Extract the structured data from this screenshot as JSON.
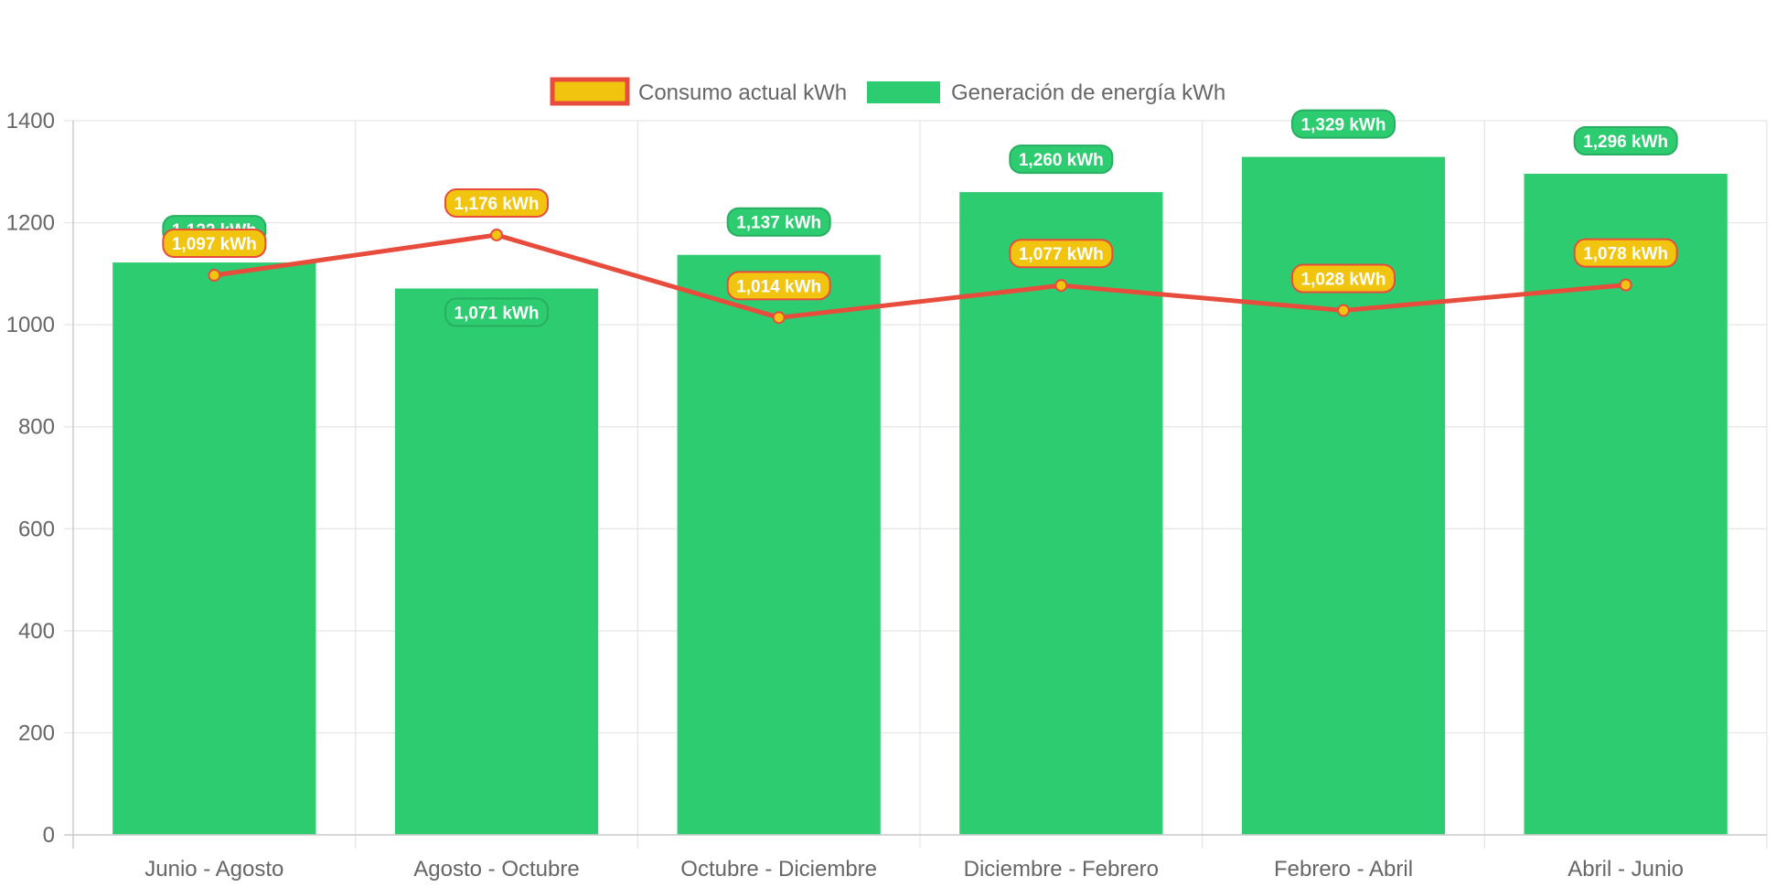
{
  "colors": {
    "bar_fill": "#2ecc71",
    "line_stroke": "#e74c3c",
    "line_point_fill": "#f1c40f",
    "grid": "#e5e5e5",
    "axis_text": "#666666"
  },
  "legend": {
    "placement": "top-center",
    "items": [
      {
        "label": "Consumo actual kWh",
        "fill": "#f1c40f",
        "stroke": "#e74c3c"
      },
      {
        "label": "Generación de energía kWh",
        "fill": "#2ecc71",
        "stroke": "#2ecc71"
      }
    ]
  },
  "chart_data": {
    "type": "bar",
    "title": "",
    "xlabel": "",
    "ylabel": "",
    "ylim": [
      0,
      1400
    ],
    "yticks": [
      0,
      200,
      400,
      600,
      800,
      1000,
      1200,
      1400
    ],
    "grid": true,
    "categories": [
      "Junio - Agosto",
      "Agosto - Octubre",
      "Octubre - Diciembre",
      "Diciembre - Febrero",
      "Febrero - Abril",
      "Abril - Junio"
    ],
    "series": [
      {
        "name": "Generación de energía kWh",
        "type": "bar",
        "color": "#2ecc71",
        "values": [
          1122,
          1071,
          1137,
          1260,
          1329,
          1296
        ],
        "labels": [
          "1,122 kWh",
          "1,071 kWh",
          "1,137 kWh",
          "1,260 kWh",
          "1,329 kWh",
          "1,296 kWh"
        ]
      },
      {
        "name": "Consumo actual kWh",
        "type": "line",
        "color": "#e74c3c",
        "point_color": "#f1c40f",
        "values": [
          1097,
          1176,
          1014,
          1077,
          1028,
          1078
        ],
        "labels": [
          "1,097 kWh",
          "1,176 kWh",
          "1,014 kWh",
          "1,077 kWh",
          "1,028 kWh",
          "1,078 kWh"
        ]
      }
    ]
  }
}
